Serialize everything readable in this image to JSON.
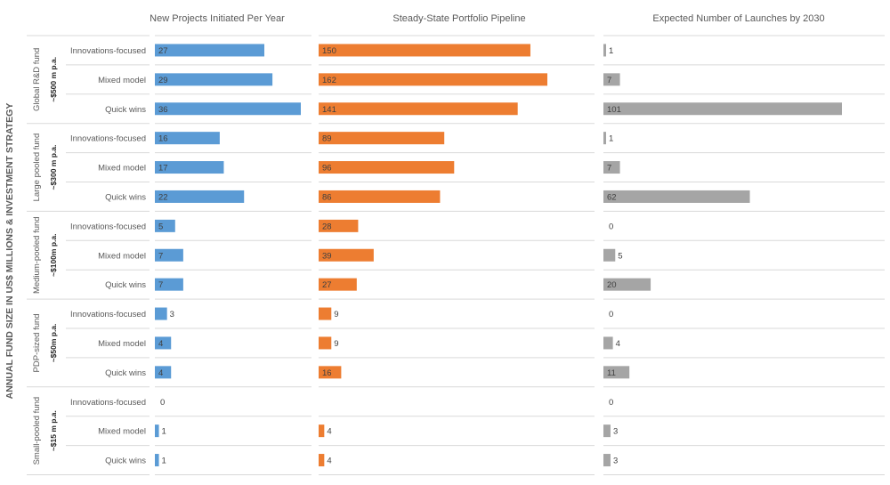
{
  "chart_data": {
    "type": "bar",
    "orientation": "horizontal",
    "y_axis_title": "ANNUAL FUND SIZE IN US$ MILLIONS & INVESTMENT STRATEGY",
    "strategies": [
      "Innovations-focused",
      "Mixed model",
      "Quick wins"
    ],
    "groups": [
      {
        "fund": "Global R&D fund",
        "size": "~$500 m  p.a."
      },
      {
        "fund": "Large pooled fund",
        "size": "~$300 m p.a."
      },
      {
        "fund": "Medium-pooled fund",
        "size": "~$100m p.a."
      },
      {
        "fund": "PDP-sized fund",
        "size": "~$50m p.a."
      },
      {
        "fund": "Small-pooled fund",
        "size": "~$15 m p.a."
      }
    ],
    "panels": [
      {
        "title": "New Projects Initiated Per Year",
        "color": "#5B9BD5",
        "xmax": 36,
        "values": [
          [
            27,
            29,
            36
          ],
          [
            16,
            17,
            22
          ],
          [
            5,
            7,
            7
          ],
          [
            3,
            4,
            4
          ],
          [
            0,
            1,
            1
          ]
        ]
      },
      {
        "title": "Steady-State Portfolio Pipeline",
        "color": "#ED7D31",
        "xmax": 162,
        "values": [
          [
            150,
            162,
            141
          ],
          [
            89,
            96,
            86
          ],
          [
            28,
            39,
            27
          ],
          [
            9,
            9,
            16
          ],
          [
            null,
            4,
            4
          ]
        ]
      },
      {
        "title": "Expected Number of Launches by 2030",
        "color": "#A5A5A5",
        "xmax": 101,
        "values": [
          [
            1,
            7,
            101
          ],
          [
            1,
            7,
            62
          ],
          [
            0,
            5,
            20
          ],
          [
            0,
            4,
            11
          ],
          [
            0,
            3,
            3
          ]
        ]
      }
    ],
    "grid": false,
    "legend": "none"
  }
}
